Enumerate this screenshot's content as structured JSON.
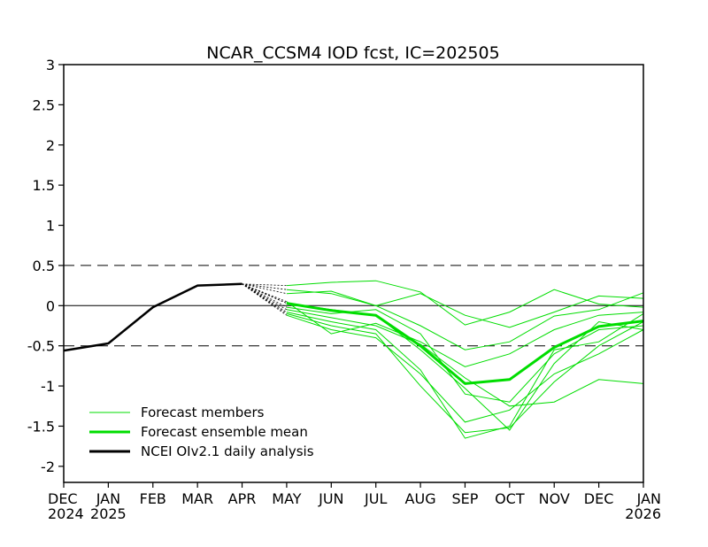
{
  "chart_data": {
    "type": "line",
    "title": "NCAR_CCSM4 IOD fcst, IC=202505",
    "xlabel": "",
    "ylabel": "",
    "ylim": [
      -2.2,
      3
    ],
    "y_ticks": [
      3,
      2.5,
      2,
      1.5,
      1,
      0.5,
      0,
      -0.5,
      -1,
      -1.5,
      -2
    ],
    "y_tick_labels": [
      "3",
      "2.5",
      "2",
      "1.5",
      "1",
      "0.5",
      "0",
      "-0.5",
      "-1",
      "-1.5",
      "-2"
    ],
    "x_ticks": [
      {
        "month": "DEC",
        "year": "2024"
      },
      {
        "month": "JAN",
        "year": "2025"
      },
      {
        "month": "FEB",
        "year": ""
      },
      {
        "month": "MAR",
        "year": ""
      },
      {
        "month": "APR",
        "year": ""
      },
      {
        "month": "MAY",
        "year": ""
      },
      {
        "month": "JUN",
        "year": ""
      },
      {
        "month": "JUL",
        "year": ""
      },
      {
        "month": "AUG",
        "year": ""
      },
      {
        "month": "SEP",
        "year": ""
      },
      {
        "month": "OCT",
        "year": ""
      },
      {
        "month": "NOV",
        "year": ""
      },
      {
        "month": "DEC",
        "year": ""
      },
      {
        "month": "JAN",
        "year": "2026"
      }
    ],
    "reference_lines": [
      {
        "y": 0.5,
        "style": "dashed"
      },
      {
        "y": 0,
        "style": "solid"
      },
      {
        "y": -0.5,
        "style": "dashed"
      }
    ],
    "legend_position": "bottom-left",
    "legend": [
      {
        "label": "Forecast members",
        "color": "#00dd00",
        "weight": "thin"
      },
      {
        "label": "Forecast ensemble mean",
        "color": "#00dd00",
        "weight": "thick"
      },
      {
        "label": "NCEI OIv2.1 daily analysis",
        "color": "#000000",
        "weight": "thick"
      }
    ],
    "analysis": {
      "x": [
        0,
        1,
        2,
        3,
        4
      ],
      "values": [
        -0.56,
        -0.47,
        -0.02,
        0.25,
        0.27
      ],
      "color": "#000000"
    },
    "connector_start_x": 4,
    "connector_start_y": 0.27,
    "ensemble_mean": {
      "x": [
        5,
        6,
        7,
        8,
        9,
        10,
        11,
        12,
        13
      ],
      "values": [
        0.03,
        -0.06,
        -0.12,
        -0.5,
        -0.97,
        -0.92,
        -0.52,
        -0.26,
        -0.19
      ],
      "color": "#00dd00"
    },
    "members_x": [
      5,
      6,
      7,
      8,
      9,
      10,
      11,
      12,
      13
    ],
    "members": [
      [
        0.25,
        0.29,
        0.31,
        0.17,
        -0.24,
        -0.08,
        0.2,
        0.02,
        -0.02
      ],
      [
        0.2,
        0.15,
        0.0,
        0.15,
        -0.12,
        -0.27,
        -0.08,
        0.12,
        0.09
      ],
      [
        0.15,
        0.18,
        0.0,
        -0.25,
        -0.55,
        -0.45,
        -0.13,
        -0.05,
        0.16
      ],
      [
        0.05,
        -0.35,
        -0.22,
        -0.45,
        -0.76,
        -0.6,
        -0.3,
        -0.12,
        -0.08
      ],
      [
        0.03,
        -0.05,
        -0.12,
        -0.55,
        -1.03,
        -1.55,
        -0.72,
        -0.2,
        -0.3
      ],
      [
        -0.02,
        -0.1,
        -0.05,
        -0.35,
        -1.1,
        -1.2,
        -0.6,
        -0.3,
        -0.25
      ],
      [
        -0.05,
        -0.15,
        -0.25,
        -0.48,
        -0.9,
        -1.25,
        -1.2,
        -0.92,
        -0.97
      ],
      [
        -0.08,
        -0.2,
        -0.3,
        -0.8,
        -1.65,
        -1.5,
        -0.55,
        -0.45,
        -0.1
      ],
      [
        -0.1,
        -0.25,
        -0.35,
        -1.0,
        -1.58,
        -1.52,
        -0.95,
        -0.5,
        -0.2
      ],
      [
        -0.12,
        -0.3,
        -0.4,
        -0.85,
        -1.45,
        -1.3,
        -0.85,
        -0.6,
        -0.3
      ]
    ]
  }
}
